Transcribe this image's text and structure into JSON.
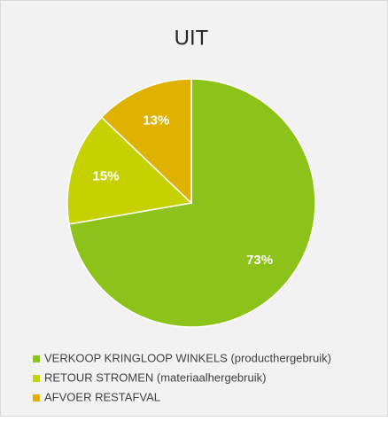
{
  "chart_data": {
    "type": "pie",
    "title": "UIT",
    "categories": [
      "VERKOOP KRINGLOOP WINKELS (producthergebruik)",
      "RETOUR STROMEN (materiaalhergebruik)",
      "AFVOER RESTAFVAL"
    ],
    "values": [
      73,
      15,
      13
    ],
    "value_labels": [
      "73%",
      "15%",
      "13%"
    ],
    "colors": [
      "#8cc21a",
      "#c6d200",
      "#dfb100"
    ],
    "legend": "bottom-left"
  }
}
